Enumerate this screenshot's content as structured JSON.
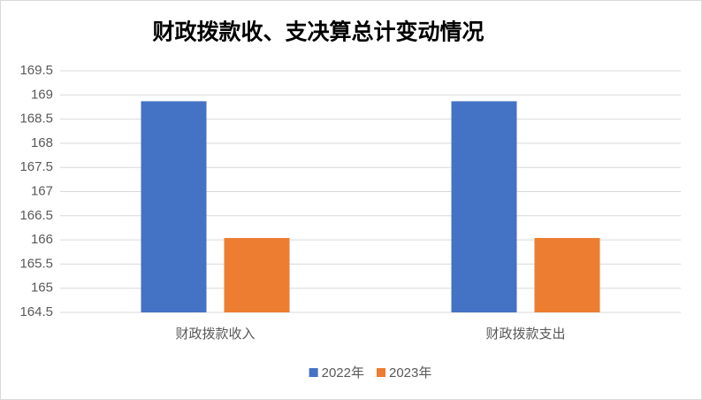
{
  "chart_data": {
    "type": "bar",
    "title": "财政拨款收、支决算总计变动情况",
    "categories": [
      "财政拨款收入",
      "财政拨款支出"
    ],
    "series": [
      {
        "name": "2022年",
        "color": "#4472c4",
        "values": [
          168.87,
          168.87
        ]
      },
      {
        "name": "2023年",
        "color": "#ed7d31",
        "values": [
          166.04,
          166.04
        ]
      }
    ],
    "ylim": [
      164.5,
      169.5
    ],
    "yticks": [
      164.5,
      165,
      165.5,
      166,
      166.5,
      167,
      167.5,
      168,
      168.5,
      169,
      169.5
    ],
    "grid": true,
    "legend": "bottom"
  }
}
